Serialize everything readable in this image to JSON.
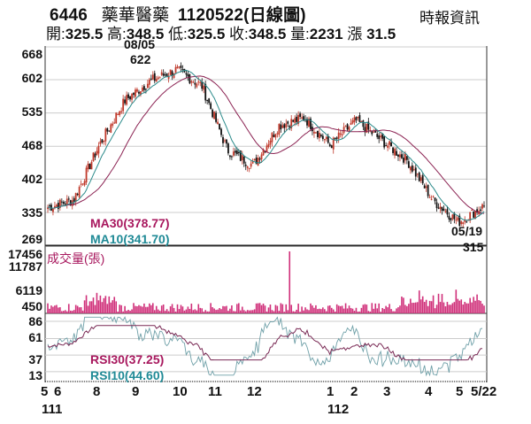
{
  "header": {
    "code": "6446",
    "name": "藥華醫藥",
    "date_title": "1120522(日線圖)",
    "source": "時報資訊",
    "open_label": "開:",
    "open": "325.5",
    "high_label": "高:",
    "high": "348.5",
    "low_label": "低:",
    "low": "325.5",
    "close_label": "收:",
    "close": "348.5",
    "volume_label": "量:",
    "volume": "2231",
    "change_label": "漲",
    "change": "31.5"
  },
  "annotations": {
    "high_date": "08/05",
    "high_value": "622",
    "low_date": "05/19",
    "low_value": "315"
  },
  "legends": {
    "ma30": "MA30(378.77)",
    "ma10": "MA10(341.70)",
    "volume_title": "成交量(張)",
    "rsi30": "RSI30(37.25)",
    "rsi10": "RSI10(44.60)"
  },
  "colors": {
    "up": "#c0392b",
    "down": "#111111",
    "ma30": "#8b2252",
    "ma10": "#2a8a8a",
    "volume": "#d0307a",
    "rsi30": "#7a2a55",
    "rsi10": "#6fa0a8",
    "grid": "#cccccc",
    "axis": "#555555"
  },
  "chart_data": [
    {
      "type": "candlestick",
      "title": "6446 藥華醫藥 1120522(日線圖)",
      "yticks": [
        668,
        602,
        535,
        468,
        402,
        335,
        269
      ],
      "ylim": [
        269,
        668
      ],
      "x_month_labels": [
        "5",
        "6",
        "8",
        "9",
        "10",
        "11",
        "12",
        "1",
        "2",
        "3",
        "4",
        "5",
        "5/22"
      ],
      "year_labels": [
        "111",
        "112"
      ],
      "series": [
        {
          "name": "MA30",
          "last": 378.77
        },
        {
          "name": "MA10",
          "last": 341.7
        }
      ],
      "approx_close_path": [
        {
          "month": "111/5",
          "value": 345
        },
        {
          "month": "111/6",
          "value": 360
        },
        {
          "month": "111/7",
          "value": 470
        },
        {
          "month": "111/7 mid",
          "value": 560
        },
        {
          "month": "111/8",
          "value": 600
        },
        {
          "month": "111/8/05 high",
          "value": 622
        },
        {
          "month": "111/9",
          "value": 590
        },
        {
          "month": "111/10",
          "value": 460
        },
        {
          "month": "111/11",
          "value": 430
        },
        {
          "month": "111/11 end",
          "value": 510
        },
        {
          "month": "111/12",
          "value": 525
        },
        {
          "month": "112/1",
          "value": 470
        },
        {
          "month": "112/2",
          "value": 520
        },
        {
          "month": "112/3",
          "value": 480
        },
        {
          "month": "112/4",
          "value": 440
        },
        {
          "month": "112/5",
          "value": 360
        },
        {
          "month": "112/5/19 low",
          "value": 315
        },
        {
          "month": "112/5/22",
          "value": 348.5
        }
      ],
      "annotations": [
        {
          "text": "08/05 622",
          "type": "high"
        },
        {
          "text": "05/19 315",
          "type": "low"
        }
      ]
    },
    {
      "type": "bar",
      "title": "成交量(張)",
      "yticks": [
        17456,
        11787,
        6119,
        450
      ],
      "ylim": [
        0,
        17456
      ],
      "peak": {
        "month": "111/12",
        "value": 17456
      },
      "last": 2231
    },
    {
      "type": "line",
      "title": "RSI",
      "yticks": [
        86,
        61,
        37,
        13
      ],
      "ylim": [
        0,
        95
      ],
      "series": [
        {
          "name": "RSI30",
          "last": 37.25
        },
        {
          "name": "RSI10",
          "last": 44.6
        }
      ]
    }
  ]
}
